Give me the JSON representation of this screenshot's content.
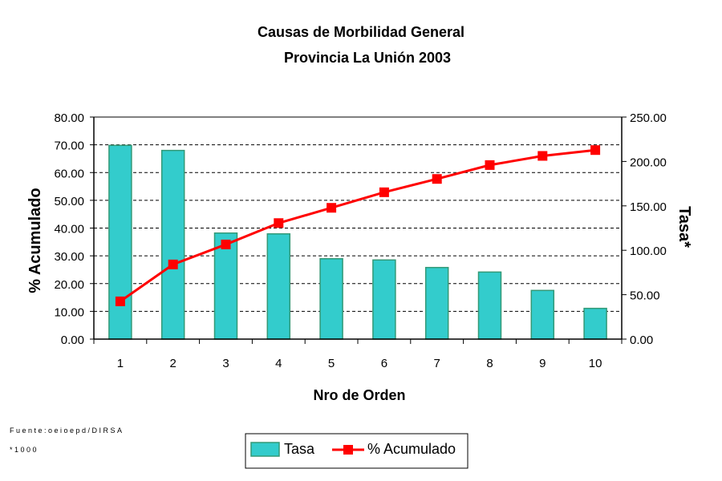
{
  "chart_data": {
    "type": "bar",
    "title": "Causas de Morbilidad General",
    "subtitle": "Provincia La Unión 2003",
    "xlabel": "Nro de Orden",
    "ylabel_left": "% Acumulado",
    "ylabel_right": "Tasa*",
    "categories": [
      "1",
      "2",
      "3",
      "4",
      "5",
      "6",
      "7",
      "8",
      "9",
      "10"
    ],
    "ylim_left": [
      0,
      80
    ],
    "ylim_right": [
      0,
      250
    ],
    "yticks_left": [
      "0.00",
      "10.00",
      "20.00",
      "30.00",
      "40.00",
      "50.00",
      "60.00",
      "70.00",
      "80.00"
    ],
    "yticks_right": [
      "0.00",
      "50.00",
      "100.00",
      "150.00",
      "200.00",
      "250.00"
    ],
    "grid": true,
    "legend_placement": "bottom",
    "series": [
      {
        "name": "Tasa",
        "type": "bar",
        "axis": "right",
        "color": "#33CCCC",
        "edge": "#339977",
        "values": [
          218.1,
          212.4,
          119.4,
          118.5,
          90.5,
          89.1,
          80.6,
          75.5,
          54.8,
          34.6
        ]
      },
      {
        "name": "% Acumulado",
        "type": "line",
        "axis": "left",
        "color": "#FF0000",
        "values": [
          13.6,
          26.9,
          34.1,
          41.8,
          47.3,
          52.9,
          57.7,
          62.7,
          66.0,
          68.1
        ]
      }
    ],
    "notes": [
      "Fuente:oeioepd/DIRSA",
      "*1000"
    ]
  }
}
